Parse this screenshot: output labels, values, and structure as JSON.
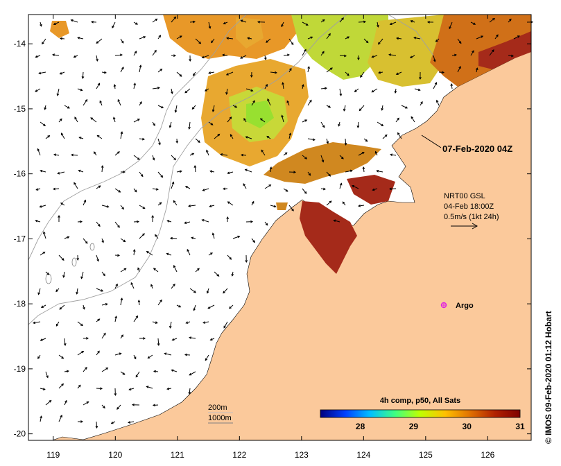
{
  "map": {
    "x_ticks": [
      "119",
      "120",
      "121",
      "122",
      "123",
      "124",
      "125",
      "126"
    ],
    "y_ticks": [
      "-14",
      "-15",
      "-16",
      "-17",
      "-18",
      "-19",
      "-20"
    ],
    "lon_range": [
      118.6,
      126.7
    ],
    "lat_range": [
      -20.1,
      -13.55
    ]
  },
  "labels": {
    "timestamp": "07-Feb-2020 04Z",
    "current_source": "NRT00 GSL",
    "current_time": "04-Feb 18:00Z",
    "current_scale": "0.5m/s (1kt 24h)",
    "argo": "Argo",
    "contour_200": "200m",
    "contour_1000": "1000m",
    "credit": "© IMOS 09-Feb-2020 01:12 Hobart"
  },
  "colorbar": {
    "title": "4h comp, p50, All Sats",
    "ticks": [
      "28",
      "29",
      "30",
      "31"
    ],
    "colors": [
      "#00007f",
      "#0040ff",
      "#00c0ff",
      "#40ff80",
      "#c0ff00",
      "#ffc000",
      "#e07000",
      "#b02000",
      "#7f0000"
    ]
  },
  "colors": {
    "land": "#fbc99b",
    "sst_warm": "#a52a1a",
    "sst_mid": "#e8a020",
    "sst_cool": "#b8e030",
    "argo_marker": "#e020e0"
  }
}
